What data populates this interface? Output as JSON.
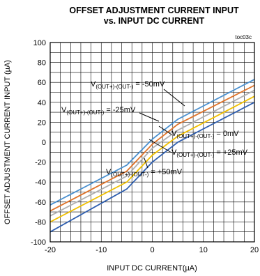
{
  "chart_data": {
    "type": "line",
    "title": "OFFSET ADJUSTMENT CURRENT INPUT",
    "subtitle": "vs. INPUT DC CURRENT",
    "note": "toc03c",
    "xlabel": "INPUT DC CURRENT(µA)",
    "ylabel": "OFFSET ADJUSTMENT CURRENT INPUT (µA)",
    "xlim": [
      -20,
      20
    ],
    "ylim": [
      -100,
      100
    ],
    "xticks": [
      -20,
      -10,
      0,
      10,
      20
    ],
    "yticks": [
      -100,
      -80,
      -60,
      -40,
      -20,
      0,
      20,
      40,
      60,
      80,
      100
    ],
    "grid": true,
    "series": [
      {
        "name": "V(OUT+)-(OUT-) = -50mV",
        "color": "#4a90d0",
        "x": [
          -20,
          -5,
          0,
          5,
          20
        ],
        "y": [
          -63,
          -23,
          3,
          23,
          63
        ]
      },
      {
        "name": "V(OUT+)-(OUT-) = -25mV",
        "color": "#e0742a",
        "x": [
          -20,
          -5,
          0,
          5,
          20
        ],
        "y": [
          -69,
          -29,
          -2,
          18,
          57
        ]
      },
      {
        "name": "V(OUT+)-(OUT-) = 0mV",
        "color": "#b0b0b0",
        "x": [
          -20,
          -5,
          0,
          5,
          20
        ],
        "y": [
          -74,
          -34,
          -6,
          12,
          52
        ]
      },
      {
        "name": "V(OUT+)-(OUT-) = +25mV",
        "color": "#f0c000",
        "x": [
          -20,
          -5,
          0,
          5,
          20
        ],
        "y": [
          -80,
          -40,
          -13,
          6,
          46
        ]
      },
      {
        "name": "V(OUT+)-(OUT-) = +50mV",
        "color": "#2f5fb0",
        "x": [
          -20,
          -5,
          0,
          5,
          20
        ],
        "y": [
          -90,
          -47,
          -20,
          0,
          40
        ]
      }
    ],
    "annotations": [
      {
        "main": "V",
        "sub": "(OUT+)-(OUT-)",
        "value": " = -50mV"
      },
      {
        "main": "V",
        "sub": "(OUT+)-(OUT-)",
        "value": " = -25mV"
      },
      {
        "main": "V",
        "sub": "(OUT+)-(OUT-)",
        "value": " = 0mV"
      },
      {
        "main": "V",
        "sub": "(OUT+)-(OUT-)",
        "value": " = +25mV"
      },
      {
        "main": "V",
        "sub": "(OUT+)-(OUT-)",
        "value": " = +50mV"
      }
    ]
  }
}
